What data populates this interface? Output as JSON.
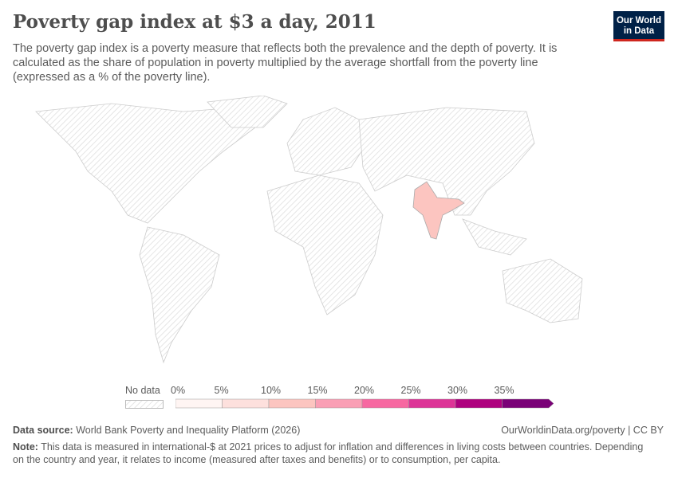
{
  "title": "Poverty gap index at $3 a day, 2011",
  "subtitle": "The poverty gap index is a poverty measure that reflects both the prevalence and the depth of poverty. It is calculated as the share of population in poverty multiplied by the average shortfall from the poverty line (expressed as a % of the poverty line).",
  "logo": {
    "line1": "Our World",
    "line2": "in Data"
  },
  "legend": {
    "no_data": "No data",
    "ticks": [
      "0%",
      "5%",
      "10%",
      "15%",
      "20%",
      "25%",
      "30%",
      "35%"
    ],
    "colors": [
      "#fff5f3",
      "#fde0dd",
      "#fcc5c0",
      "#fa9fb5",
      "#f768a1",
      "#dd3497",
      "#ae017e",
      "#7a0177"
    ]
  },
  "map": {
    "highlighted": [
      {
        "country": "India",
        "value_range": "10-15%",
        "color": "#fcc5c0"
      }
    ],
    "no_data_pattern": "hatched"
  },
  "footer": {
    "source_label": "Data source:",
    "source": "World Bank Poverty and Inequality Platform (2026)",
    "url": "OurWorldinData.org/poverty | CC BY",
    "note_label": "Note:",
    "note": "This data is measured in international-$ at 2021 prices to adjust for inflation and differences in living costs between countries. Depending on the country and year, it relates to income (measured after taxes and benefits) or to consumption, per capita."
  }
}
